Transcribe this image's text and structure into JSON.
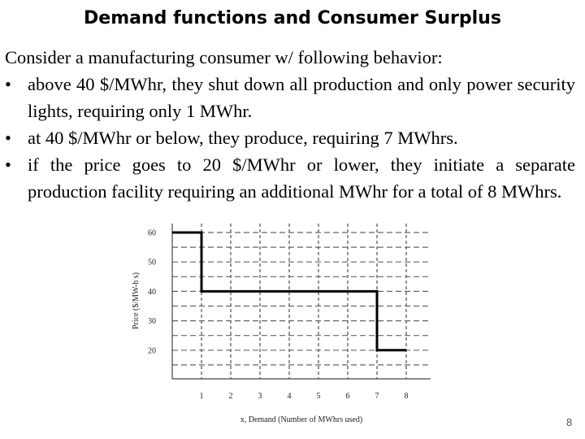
{
  "slide": {
    "title": "Demand functions and Consumer Surplus",
    "intro": "Consider a manufacturing consumer w/ following behavior:",
    "bullet_glyph": "•",
    "bullets": [
      "above 40 $/MWhr, they shut down all production and only power security lights, requiring only 1 MWhr.",
      "at 40 $/MWhr or below, they produce, requiring 7 MWhrs.",
      "if the price goes to 20 $/MWhr or lower, they initiate a separate production facility requiring an additional MWhr for a total of 8 MWhrs."
    ],
    "page_number": "8"
  },
  "chart_data": {
    "type": "line",
    "xlabel": "x, Demand (Number of MWhrs used)",
    "ylabel": "Price ($/MW-h s)",
    "x_ticks": [
      "1",
      "2",
      "3",
      "4",
      "5",
      "6",
      "7",
      "8"
    ],
    "y_ticks": [
      "60",
      "50",
      "40",
      "30",
      "20"
    ],
    "xlim": [
      0,
      8
    ],
    "ylim": [
      10,
      60
    ],
    "grid": true,
    "grid_style": "dashed",
    "series": [
      {
        "x": [
          0,
          1,
          1,
          7,
          7,
          8
        ],
        "y": [
          60,
          60,
          40,
          40,
          20,
          20
        ],
        "color": "#000000"
      }
    ]
  }
}
